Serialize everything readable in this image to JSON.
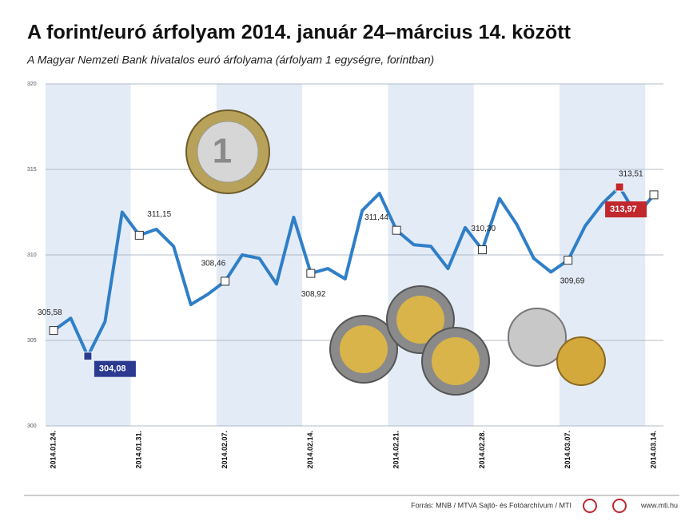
{
  "chart_data": {
    "type": "line",
    "title": "A forint/euró árfolyam 2014. január 24–március 14. között",
    "subtitle": "A Magyar Nemzeti Bank hivatalos euró árfolyama (árfolyam 1 egységre, forintban)",
    "categories": [
      "2014.01.24.",
      null,
      null,
      null,
      null,
      "2014.01.31.",
      null,
      null,
      null,
      null,
      "2014.02.07.",
      null,
      null,
      null,
      null,
      "2014.02.14.",
      null,
      null,
      null,
      null,
      "2014.02.21.",
      null,
      null,
      null,
      null,
      "2014.02.28.",
      null,
      null,
      null,
      null,
      "2014.03.07.",
      null,
      null,
      null,
      null,
      "2014.03.14."
    ],
    "values": [
      305.58,
      306.3,
      304.08,
      306.1,
      312.5,
      311.15,
      311.5,
      310.5,
      307.1,
      307.7,
      308.46,
      310.0,
      309.8,
      308.3,
      312.2,
      308.92,
      309.2,
      308.6,
      312.6,
      313.6,
      311.44,
      310.6,
      310.5,
      309.2,
      311.6,
      310.3,
      313.3,
      311.8,
      309.8,
      309.0,
      309.69,
      311.7,
      313.0,
      313.97,
      312.3,
      313.51
    ],
    "value_labels": [
      "305,58",
      null,
      "304,08",
      null,
      null,
      "311,15",
      null,
      null,
      null,
      null,
      "308,46",
      null,
      null,
      null,
      null,
      "308,92",
      null,
      null,
      null,
      null,
      "311,44",
      null,
      null,
      null,
      null,
      "310,30",
      null,
      null,
      null,
      null,
      "309,69",
      null,
      null,
      "313,97",
      null,
      "313,51"
    ],
    "color": "#2f7fc7",
    "min_color": "#2b3990",
    "max_color": "#c1272d",
    "band_color": "#e3ebf6",
    "ylim": [
      300,
      320
    ],
    "yticks": [
      300,
      305,
      310,
      315,
      320
    ],
    "grid": true,
    "source": "Forrás: MNB / MTVA Sajtó- és Fotóarchívum / MTI",
    "website": "www.mti.hu"
  }
}
